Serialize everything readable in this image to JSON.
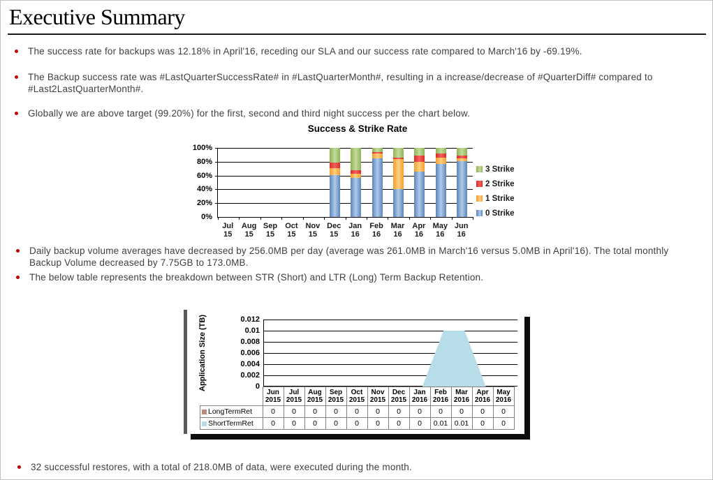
{
  "slide": {
    "title": "Executive Summary",
    "bullet_color": "#C00000",
    "text_color": "#3F3F3F",
    "bullets": [
      "The success rate for backups was 12.18% in April'16, receding our SLA and our success rate compared to March'16 by -69.19%.",
      "The Backup success rate was #LastQuarterSuccessRate# in #LastQuarterMonth#, resulting in a increase/decrease of #QuarterDiff# compared to #Last2LastQuarterMonth#.",
      "Globally we are above target (99.20%) for the first, second and third night success per the chart below.",
      "Daily backup volume averages have decreased by 256.0MB per day (average was 261.0MB in March'16 versus 5.0MB in April'16). The total monthly Backup Volume decreased by 7.75GB  to 173.0MB.",
      "The below table represents the breakdown between STR (Short) and LTR (Long) Term Backup Retention.",
      "32 successful restores, with a total of 218.0MB of data, were executed during the month."
    ]
  },
  "chart_data": [
    {
      "type": "bar",
      "stacked": true,
      "title": "Success & Strike Rate",
      "categories": [
        [
          "Jul 15"
        ],
        [
          "Aug",
          "15"
        ],
        [
          "Sep",
          "15"
        ],
        [
          "Oct",
          "15"
        ],
        [
          "Nov",
          "15"
        ],
        [
          "Dec",
          "15"
        ],
        [
          "Jan",
          "16"
        ],
        [
          "Feb",
          "16"
        ],
        [
          "Mar",
          "16"
        ],
        [
          "Apr",
          "16"
        ],
        [
          "May",
          "16"
        ],
        [
          "Jun",
          "16"
        ]
      ],
      "ylim": [
        0,
        100
      ],
      "yticks": [
        "100%",
        "80%",
        "60%",
        "40%",
        "20%",
        "0%"
      ],
      "grid": true,
      "legend_position": "right",
      "legend_order": [
        "3 Strike",
        "2 Strike",
        "1 Strike",
        "0 Strike"
      ],
      "series": [
        {
          "name": "0 Strike",
          "color": "#5C85BA",
          "color_light": "#AECBEC",
          "values": [
            0,
            0,
            0,
            0,
            0,
            61,
            57,
            85,
            40,
            66,
            77,
            81
          ]
        },
        {
          "name": "1 Strike",
          "color": "#F59D2A",
          "color_light": "#FECF83",
          "values": [
            0,
            0,
            0,
            0,
            0,
            10,
            6,
            7,
            44,
            14,
            9,
            4
          ]
        },
        {
          "name": "2 Strike",
          "color": "#E02826",
          "color_light": "#F2635E",
          "values": [
            0,
            0,
            0,
            0,
            0,
            8,
            5,
            2,
            2,
            9,
            6,
            4
          ]
        },
        {
          "name": "3 Strike",
          "color": "#8CB353",
          "color_light": "#C6DB9E",
          "values": [
            0,
            0,
            0,
            0,
            0,
            21,
            32,
            6,
            14,
            11,
            8,
            11
          ]
        }
      ]
    },
    {
      "type": "area",
      "title": "",
      "ylabel": "Application Size (TB)",
      "categories": [
        [
          "Jun",
          "2015"
        ],
        [
          "Jul",
          "2015"
        ],
        [
          "Aug",
          "2015"
        ],
        [
          "Sep",
          "2015"
        ],
        [
          "Oct",
          "2015"
        ],
        [
          "Nov",
          "2015"
        ],
        [
          "Dec",
          "2015"
        ],
        [
          "Jan",
          "2016"
        ],
        [
          "Feb",
          "2016"
        ],
        [
          "Mar",
          "2016"
        ],
        [
          "Apr",
          "2016"
        ],
        [
          "May",
          "2016"
        ]
      ],
      "ylim": [
        0,
        0.012
      ],
      "yticks": [
        "0.012",
        "0.01",
        "0.008",
        "0.006",
        "0.004",
        "0.002",
        "0"
      ],
      "grid": true,
      "series": [
        {
          "name": "LongTermRet",
          "color": "#BA8A7C",
          "values": [
            0,
            0,
            0,
            0,
            0,
            0,
            0,
            0,
            0,
            0,
            0,
            0
          ],
          "display": [
            "0",
            "0",
            "0",
            "0",
            "0",
            "0",
            "0",
            "0",
            "0",
            "0",
            "0",
            "0"
          ]
        },
        {
          "name": "ShortTermRet",
          "color": "#B7DEE8",
          "values": [
            0,
            0,
            0,
            0,
            0,
            0,
            0,
            0,
            0.01,
            0.01,
            0,
            0
          ],
          "display": [
            "0",
            "0",
            "0",
            "0",
            "0",
            "0",
            "0",
            "0",
            "0.01",
            "0.01",
            "0",
            "0"
          ]
        }
      ]
    }
  ]
}
